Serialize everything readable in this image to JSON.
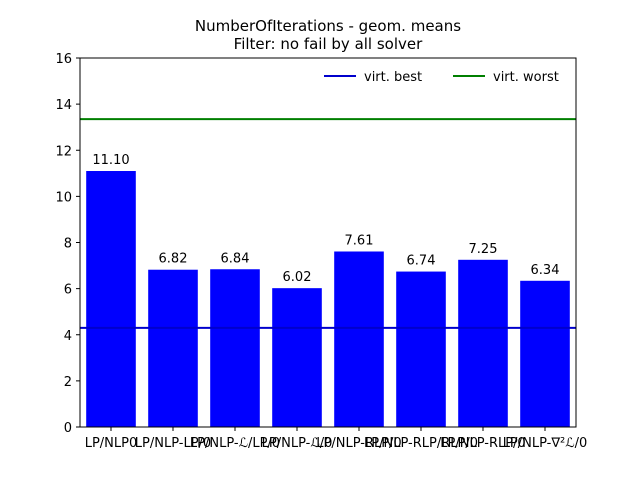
{
  "chart_data": {
    "type": "bar",
    "title": "NumberOfIterations - geom. means",
    "subtitle": "Filter: no fail by all solver",
    "categories": [
      "LP/NLP0",
      "LP/NLP-LP/0",
      "LP/NLP-ℒ/LP/0",
      "LP/NLP-ℒ/0",
      "LP/NLP-RLP/0",
      "LP/NLP-RLP/RLP/0",
      "LP/NLP-RLP/0",
      "LP/NLP-∇²ℒ/0"
    ],
    "values": [
      11.1,
      6.82,
      6.84,
      6.02,
      7.61,
      6.74,
      7.25,
      6.34
    ],
    "value_labels": [
      "11.10",
      "6.82",
      "6.84",
      "6.02",
      "7.61",
      "6.74",
      "7.25",
      "6.34"
    ],
    "bar_color": "#0000ff",
    "ylim": [
      0,
      16
    ],
    "yticks": [
      "0",
      "2",
      "4",
      "6",
      "8",
      "10",
      "12",
      "14",
      "16"
    ],
    "grid": false,
    "reference_lines": [
      {
        "name": "virt. best",
        "value": 4.3,
        "color": "#0000cc"
      },
      {
        "name": "virt. worst",
        "value": 13.35,
        "color": "#007f00"
      }
    ],
    "legend_position": "top-right"
  }
}
